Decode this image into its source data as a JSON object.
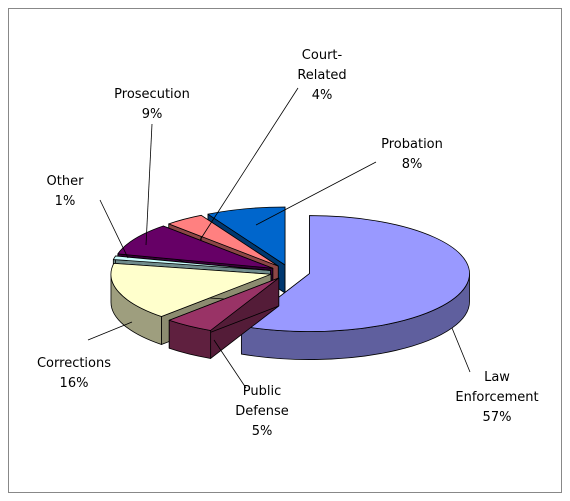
{
  "chart_data": {
    "type": "pie3d",
    "categories": [
      "Law\nEnforcement",
      "Public\nDefense",
      "Corrections",
      "Other",
      "Prosecution",
      "Court-\nRelated",
      "Probation"
    ],
    "values": [
      57,
      5,
      16,
      1,
      9,
      4,
      8
    ],
    "value_labels": [
      "57%",
      "5%",
      "16%",
      "1%",
      "9%",
      "4%",
      "8%"
    ],
    "colors": [
      "#9999ff",
      "#993366",
      "#ffffcc",
      "#ccffff",
      "#660066",
      "#ff8080",
      "#0066cc"
    ]
  }
}
